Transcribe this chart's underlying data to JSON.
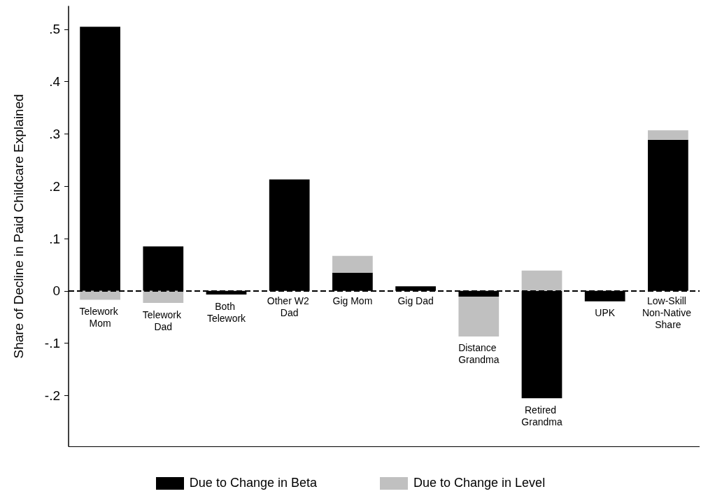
{
  "chart_data": {
    "type": "bar",
    "stacked": true,
    "ylabel": "Share of Decline in Paid Childcare Explained",
    "categories": [
      "Telework Mom",
      "Telework Dad",
      "Both Telework",
      "Other W2 Dad",
      "Gig Mom",
      "Gig Dad",
      "Distance Grandma",
      "Retired Grandma",
      "UPK",
      "Low-Skill Non-Native Share"
    ],
    "series": [
      {
        "name": "Due to Change in Beta",
        "color": "#000000",
        "values": [
          0.505,
          0.085,
          -0.007,
          0.213,
          0.035,
          0.009,
          -0.011,
          -0.205,
          -0.02,
          0.289
        ]
      },
      {
        "name": "Due to Change in Level",
        "color": "#c0c0c0",
        "values": [
          -0.017,
          -0.023,
          0,
          0,
          0.032,
          0,
          -0.076,
          0.039,
          0,
          0.018
        ]
      }
    ],
    "ylim": [
      -0.297,
      0.544
    ],
    "yticks": [
      {
        "value": -0.2,
        "label": "-.2"
      },
      {
        "value": -0.1,
        "label": "-.1"
      },
      0,
      {
        "value": 0.1,
        "label": ".1"
      },
      {
        "value": 0.2,
        "label": ".2"
      },
      {
        "value": 0.3,
        "label": ".3"
      },
      {
        "value": 0.4,
        "label": ".4"
      },
      {
        "value": 0.5,
        "label": ".5"
      }
    ],
    "ref_lines": [
      {
        "axis": "y",
        "value": 0,
        "color": "#000000",
        "line_style": "dashed"
      }
    ],
    "grid": false,
    "legend": "bottom"
  }
}
